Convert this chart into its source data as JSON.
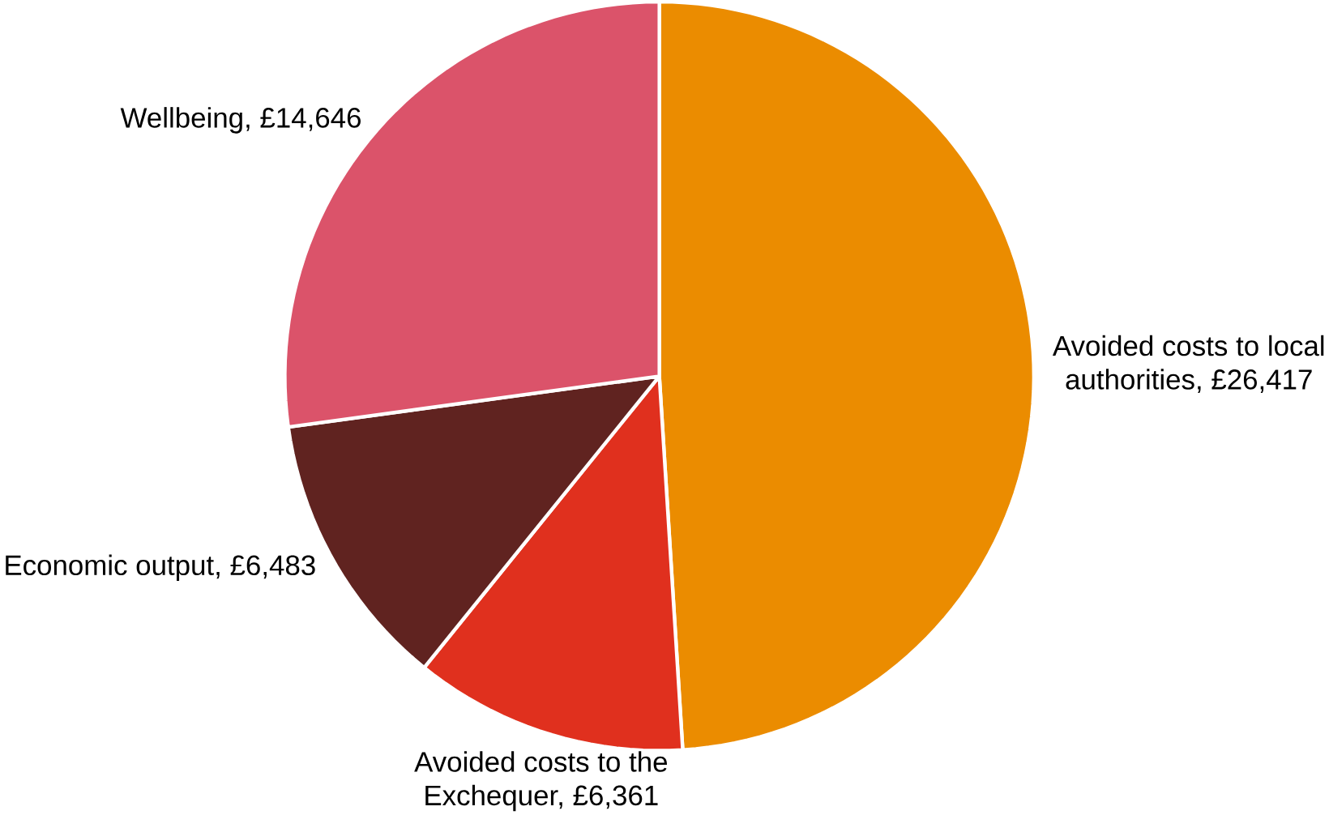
{
  "chart_data": {
    "type": "pie",
    "categories": [
      "Avoided costs to local authorities, £26,417",
      "Avoided costs to the Exchequer, £6,361",
      "Economic output, £6,483",
      "Wellbeing, £14,646"
    ],
    "values": [
      26417,
      6361,
      6483,
      14646
    ],
    "colors": [
      "#eb8c00",
      "#e0301e",
      "#602320",
      "#db536a"
    ]
  }
}
